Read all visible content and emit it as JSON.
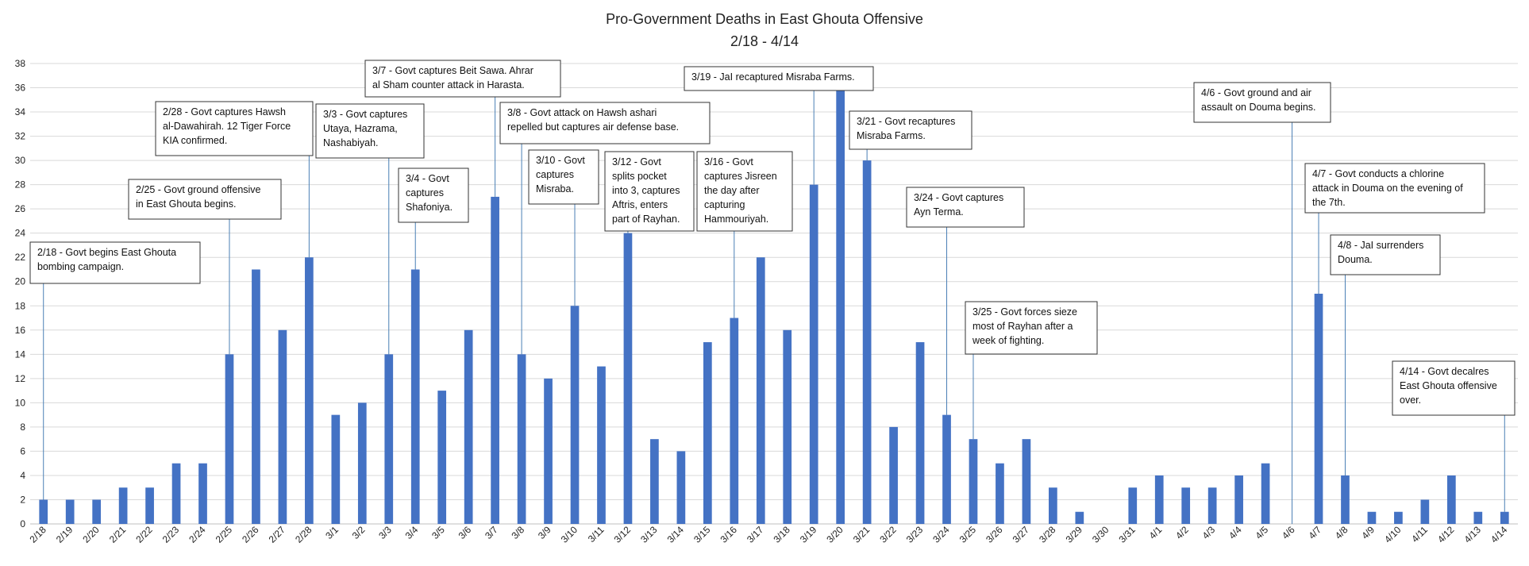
{
  "chart_data": {
    "type": "bar",
    "title": "Pro-Government  Deaths in East Ghouta Offensive",
    "subtitle": "2/18 - 4/14",
    "xlabel": "",
    "ylabel": "",
    "ylim": [
      0,
      38
    ],
    "yticks": [
      0,
      2,
      4,
      6,
      8,
      10,
      12,
      14,
      16,
      18,
      20,
      22,
      24,
      26,
      28,
      30,
      32,
      34,
      36,
      38
    ],
    "grid": true,
    "bar_color": "#4472C4",
    "categories": [
      "2/18",
      "2/19",
      "2/20",
      "2/21",
      "2/22",
      "2/23",
      "2/24",
      "2/25",
      "2/26",
      "2/27",
      "2/28",
      "3/1",
      "3/2",
      "3/3",
      "3/4",
      "3/5",
      "3/6",
      "3/7",
      "3/8",
      "3/9",
      "3/10",
      "3/11",
      "3/12",
      "3/13",
      "3/14",
      "3/15",
      "3/16",
      "3/17",
      "3/18",
      "3/19",
      "3/20",
      "3/21",
      "3/22",
      "3/23",
      "3/24",
      "3/25",
      "3/26",
      "3/27",
      "3/28",
      "3/29",
      "3/30",
      "3/31",
      "4/1",
      "4/2",
      "4/3",
      "4/4",
      "4/5",
      "4/6",
      "4/7",
      "4/8",
      "4/9",
      "4/10",
      "4/11",
      "4/12",
      "4/13",
      "4/14"
    ],
    "values": [
      2,
      2,
      2,
      3,
      3,
      5,
      5,
      14,
      21,
      16,
      22,
      9,
      10,
      14,
      21,
      11,
      16,
      27,
      14,
      12,
      18,
      13,
      24,
      7,
      6,
      15,
      17,
      22,
      16,
      28,
      36,
      30,
      8,
      15,
      9,
      7,
      5,
      7,
      3,
      1,
      0,
      3,
      4,
      3,
      3,
      4,
      5,
      0,
      19,
      4,
      1,
      1,
      2,
      4,
      1,
      1
    ],
    "annotations": [
      {
        "category": "2/18",
        "lines": [
          "2/18 - Govt begins East Ghouta",
          "bombing campaign."
        ]
      },
      {
        "category": "2/25",
        "lines": [
          "2/25 - Govt ground offensive",
          "in East Ghouta begins."
        ]
      },
      {
        "category": "2/28",
        "lines": [
          "2/28 - Govt captures Hawsh",
          "al-Dawahirah. 12 Tiger Force",
          "KIA confirmed."
        ]
      },
      {
        "category": "3/3",
        "lines": [
          "3/3 - Govt captures",
          "Utaya, Hazrama,",
          "Nashabiyah."
        ]
      },
      {
        "category": "3/4",
        "lines": [
          "3/4 - Govt",
          "captures",
          "Shafoniya."
        ]
      },
      {
        "category": "3/7",
        "lines": [
          "3/7 - Govt captures Beit Sawa. Ahrar",
          "al Sham counter attack in Harasta."
        ]
      },
      {
        "category": "3/8",
        "lines": [
          "3/8 - Govt attack on Hawsh ashari",
          "repelled but captures air defense base."
        ]
      },
      {
        "category": "3/10",
        "lines": [
          "3/10 - Govt",
          "captures",
          "Misraba."
        ]
      },
      {
        "category": "3/12",
        "lines": [
          "3/12 - Govt",
          "splits pocket",
          "into 3, captures",
          "Aftris, enters",
          "part of Rayhan."
        ]
      },
      {
        "category": "3/16",
        "lines": [
          "3/16 - Govt",
          "captures Jisreen",
          "the day after",
          "capturing",
          "Hammouriyah."
        ]
      },
      {
        "category": "3/19",
        "lines": [
          "3/19 - JaI recaptured Misraba Farms."
        ]
      },
      {
        "category": "3/21",
        "lines": [
          "3/21 - Govt recaptures",
          "Misraba Farms."
        ]
      },
      {
        "category": "3/24",
        "lines": [
          "3/24 - Govt captures",
          "Ayn Terma."
        ]
      },
      {
        "category": "3/25",
        "lines": [
          "3/25 - Govt forces sieze",
          "most of Rayhan after a",
          "week of fighting."
        ]
      },
      {
        "category": "4/6",
        "lines": [
          "4/6 - Govt ground and air",
          "assault on Douma begins."
        ]
      },
      {
        "category": "4/7",
        "lines": [
          "4/7 - Govt conducts a chlorine",
          "attack in Douma on the evening of",
          "the 7th."
        ]
      },
      {
        "category": "4/8",
        "lines": [
          "4/8 - JaI surrenders",
          "Douma."
        ]
      },
      {
        "category": "4/14",
        "lines": [
          "4/14 - Govt decalres",
          "East Ghouta offensive",
          "over."
        ]
      }
    ]
  }
}
